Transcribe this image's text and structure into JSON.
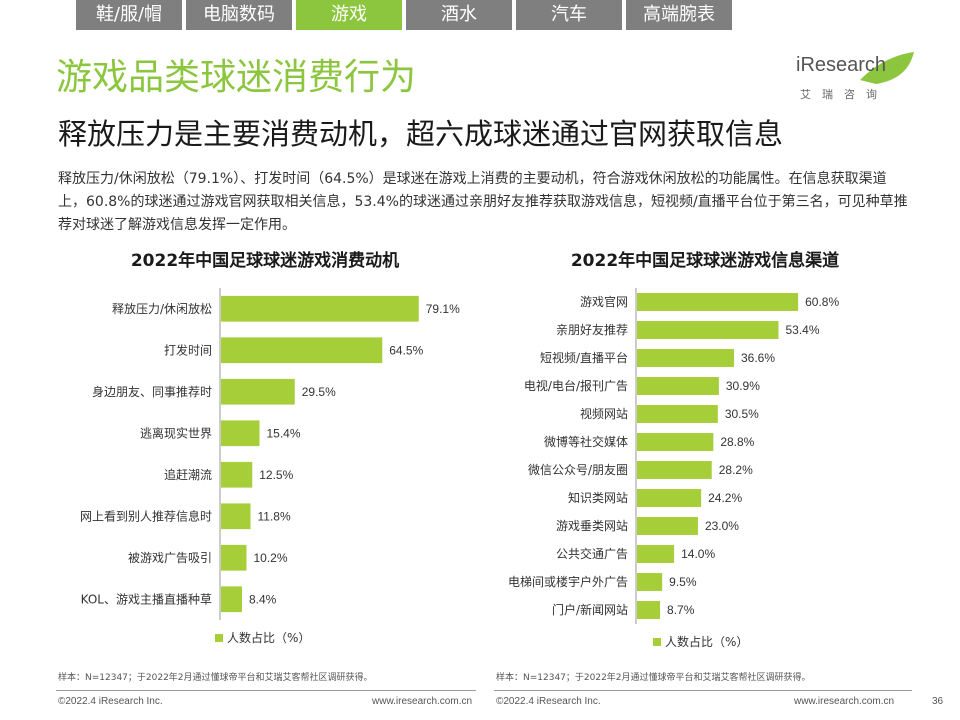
{
  "tabs": [
    {
      "label": "鞋/服/帽",
      "active": false
    },
    {
      "label": "电脑数码",
      "active": false
    },
    {
      "label": "游戏",
      "active": true
    },
    {
      "label": "酒水",
      "active": false
    },
    {
      "label": "汽车",
      "active": false
    },
    {
      "label": "高端腕表",
      "active": false
    }
  ],
  "logo": {
    "name": "iResearch",
    "cn": "艾瑞咨询"
  },
  "title": "游戏品类球迷消费行为",
  "subtitle": "释放压力是主要消费动机，超六成球迷通过官网获取信息",
  "description": "释放压力/休闲放松（79.1%）、打发时间（64.5%）是球迷在游戏上消费的主要动机，符合游戏休闲放松的功能属性。在信息获取渠道上，60.8%的球迷通过游戏官网获取相关信息，53.4%的球迷通过亲朋好友推荐获取游戏信息，短视频/直播平台位于第三名，可见种草推荐对球迷了解游戏信息发挥一定作用。",
  "colors": {
    "accent": "#8cc63f",
    "bar": "#a6ce39",
    "tab": "#7f7f7f"
  },
  "chart_data": [
    {
      "type": "bar",
      "orientation": "horizontal",
      "title": "2022年中国足球球迷游戏消费动机",
      "categories": [
        "释放压力/休闲放松",
        "打发时间",
        "身边朋友、同事推荐时",
        "逃离现实世界",
        "追赶潮流",
        "网上看到别人推荐信息时",
        "被游戏广告吸引",
        "KOL、游戏主播直播种草"
      ],
      "values": [
        79.1,
        64.5,
        29.5,
        15.4,
        12.5,
        11.8,
        10.2,
        8.4
      ],
      "value_suffix": "%",
      "legend": "人数占比（%）",
      "xlim": [
        0,
        100
      ]
    },
    {
      "type": "bar",
      "orientation": "horizontal",
      "title": "2022年中国足球球迷游戏信息渠道",
      "categories": [
        "游戏官网",
        "亲朋好友推荐",
        "短视频/直播平台",
        "电视/电台/报刊广告",
        "视频网站",
        "微博等社交媒体",
        "微信公众号/朋友圈",
        "知识类网站",
        "游戏垂类网站",
        "公共交通广告",
        "电梯间或楼宇户外广告",
        "门户/新闻网站"
      ],
      "values": [
        60.8,
        53.4,
        36.6,
        30.9,
        30.5,
        28.8,
        28.2,
        24.2,
        23.0,
        14.0,
        9.5,
        8.7
      ],
      "value_suffix": "%",
      "legend": "人数占比（%）",
      "xlim": [
        0,
        100
      ]
    }
  ],
  "source": "样本：N=12347；于2022年2月通过懂球帝平台和艾瑞艾客帮社区调研获得。",
  "footer": {
    "copyright": "©2022.4 iResearch Inc.",
    "website": "www.iresearch.com.cn",
    "page": "36"
  }
}
